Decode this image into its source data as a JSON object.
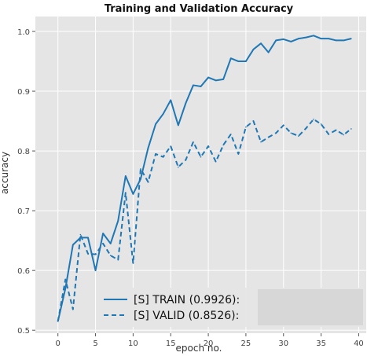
{
  "chart_data": {
    "type": "line",
    "title": "Training and Validation Accuracy",
    "xlabel": "epoch no.",
    "ylabel": "accuracy",
    "xlim": [
      -3,
      41
    ],
    "ylim": [
      0.495,
      1.025
    ],
    "xticks": [
      "0",
      "5",
      "10",
      "15",
      "20",
      "25",
      "30",
      "35",
      "40"
    ],
    "yticks": [
      "0.5",
      "0.6",
      "0.7",
      "0.8",
      "0.9",
      "1.0"
    ],
    "grid": true,
    "background": "#e5e5e5",
    "legend_location": "lower-right",
    "x": [
      0,
      1,
      2,
      3,
      4,
      5,
      6,
      7,
      8,
      9,
      10,
      11,
      12,
      13,
      14,
      15,
      16,
      17,
      18,
      19,
      20,
      21,
      22,
      23,
      24,
      25,
      26,
      27,
      28,
      29,
      30,
      31,
      32,
      33,
      34,
      35,
      36,
      37,
      38,
      39
    ],
    "series": [
      {
        "name": "[S] TRAIN (0.9926):",
        "style": "solid",
        "color": "#1f77b4",
        "values": [
          0.515,
          0.57,
          0.643,
          0.655,
          0.655,
          0.6,
          0.662,
          0.645,
          0.683,
          0.758,
          0.728,
          0.753,
          0.805,
          0.845,
          0.862,
          0.885,
          0.843,
          0.88,
          0.91,
          0.908,
          0.923,
          0.918,
          0.92,
          0.955,
          0.95,
          0.95,
          0.97,
          0.98,
          0.965,
          0.985,
          0.987,
          0.983,
          0.988,
          0.99,
          0.993,
          0.988,
          0.988,
          0.985,
          0.985,
          0.988
        ]
      },
      {
        "name": "[S] VALID (0.8526):",
        "style": "dashed",
        "color": "#1f77b4",
        "values": [
          0.515,
          0.585,
          0.535,
          0.66,
          0.628,
          0.627,
          0.645,
          0.625,
          0.618,
          0.73,
          0.612,
          0.77,
          0.748,
          0.795,
          0.79,
          0.808,
          0.773,
          0.785,
          0.815,
          0.79,
          0.808,
          0.782,
          0.81,
          0.828,
          0.795,
          0.84,
          0.85,
          0.815,
          0.823,
          0.83,
          0.843,
          0.83,
          0.825,
          0.838,
          0.853,
          0.845,
          0.828,
          0.835,
          0.827,
          0.837
        ]
      }
    ]
  }
}
